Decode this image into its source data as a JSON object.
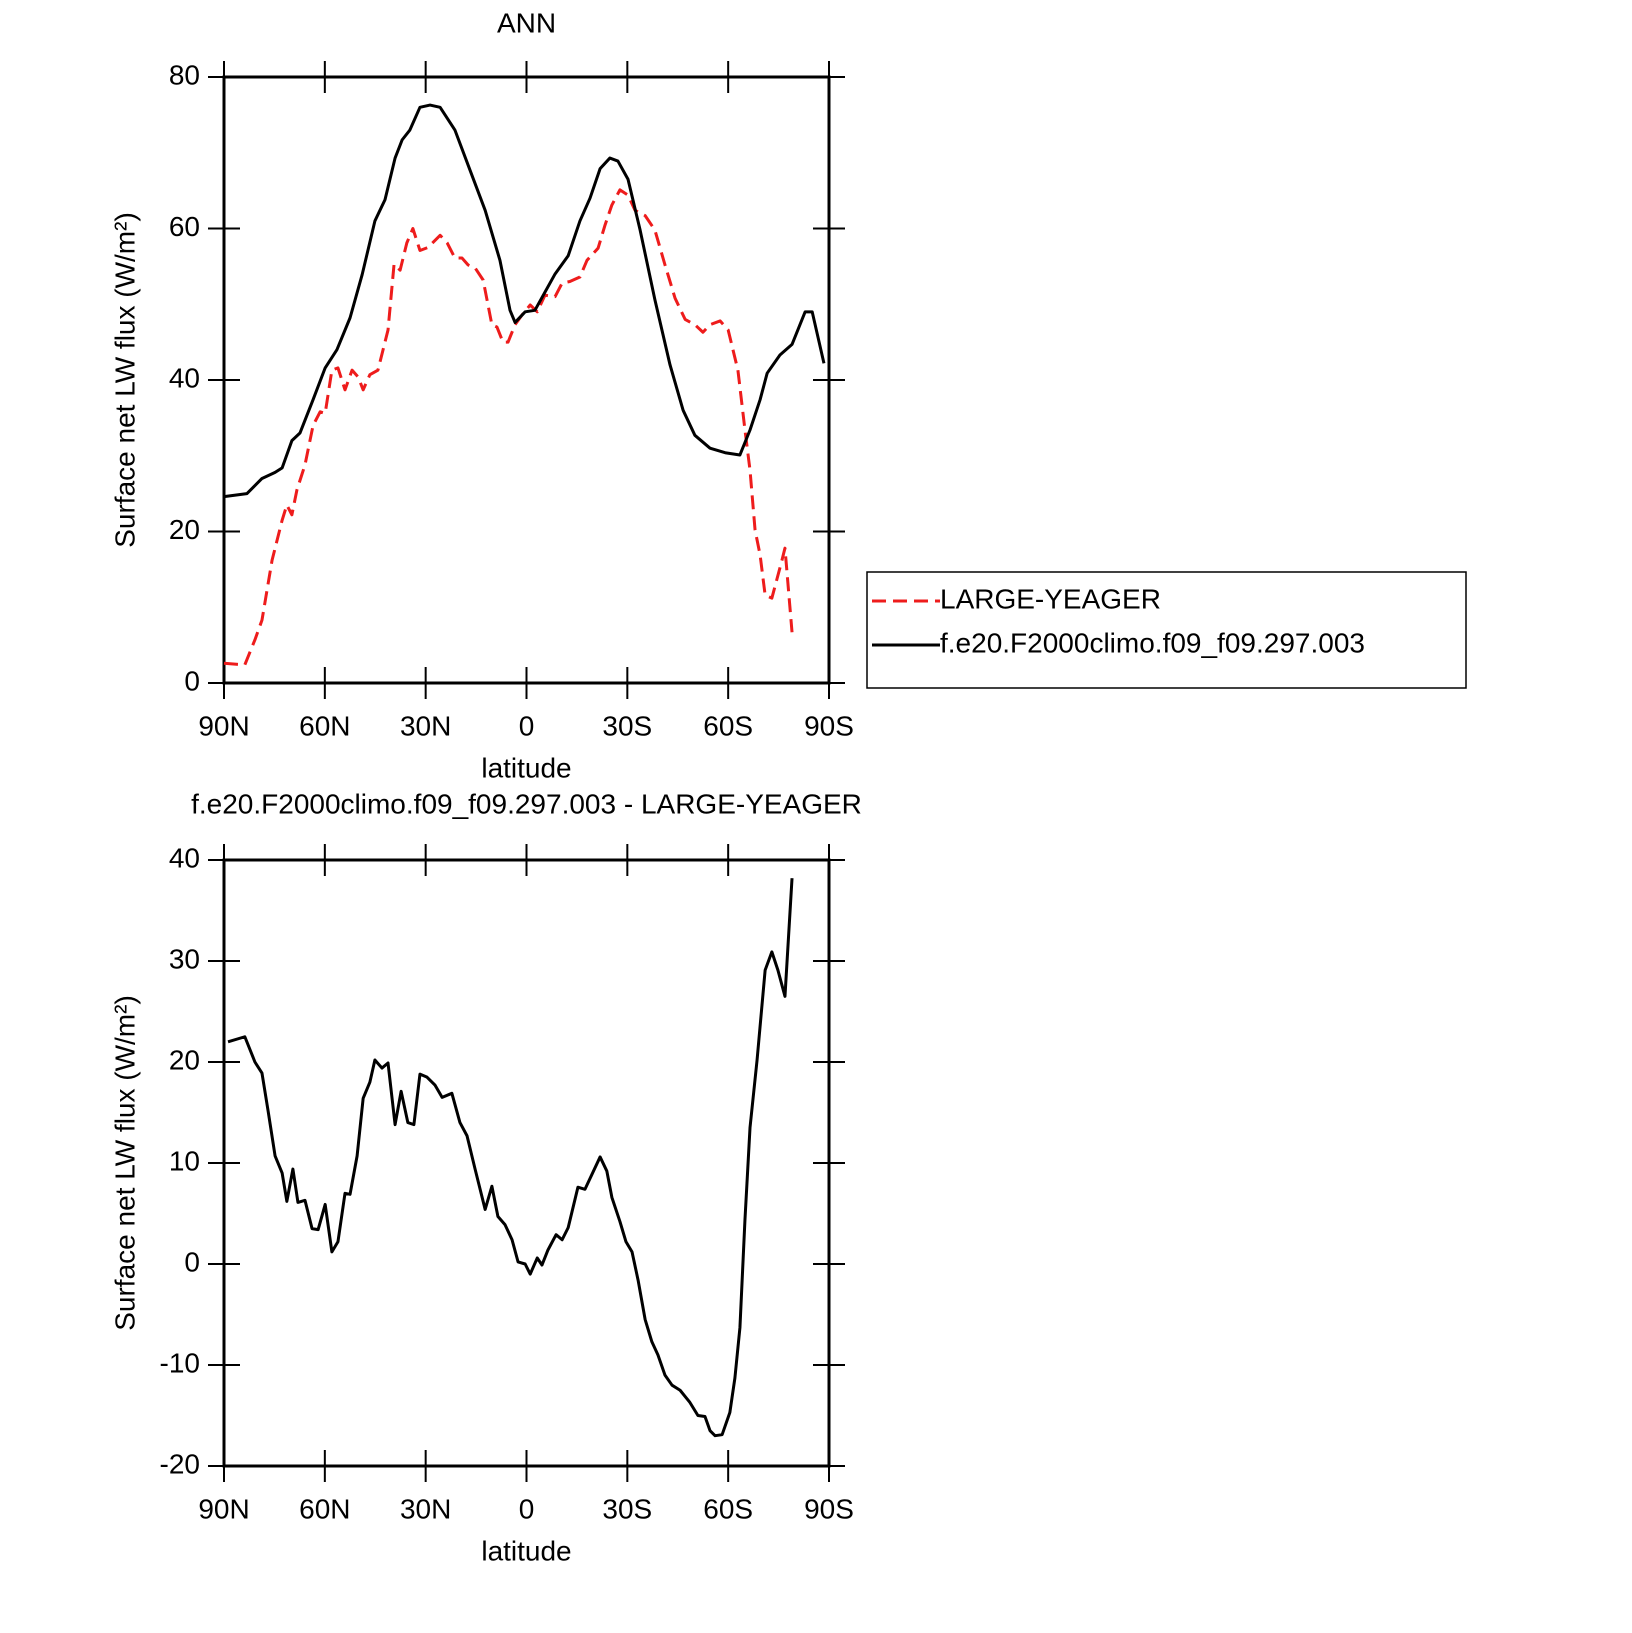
{
  "chart_data": [
    {
      "type": "line",
      "title": "ANN",
      "ylabel": "Surface net LW flux (W/m²)",
      "xlabel": "latitude",
      "xlim": [
        90,
        -90
      ],
      "ylim": [
        0,
        80
      ],
      "xticks": [
        {
          "value": 90,
          "label": "90N"
        },
        {
          "value": 60,
          "label": "60N"
        },
        {
          "value": 30,
          "label": "30N"
        },
        0,
        {
          "value": -30,
          "label": "30S"
        },
        {
          "value": -60,
          "label": "60S"
        },
        {
          "value": -90,
          "label": "90S"
        }
      ],
      "yticks": [
        0,
        20,
        40,
        60,
        80
      ],
      "legend": "right",
      "series": [
        {
          "name": "LARGE-YEAGER",
          "color": "#ee1c1c",
          "style": "dashed",
          "x": [
            90,
            83.8,
            80.8,
            78.7,
            75.7,
            72.7,
            71.3,
            69.8,
            68.3,
            65.9,
            63.5,
            61.4,
            59.9,
            57.9,
            56.1,
            54,
            51.9,
            50.1,
            48.6,
            46.6,
            44.2,
            41.2,
            39.4,
            37.6,
            35.6,
            33.8,
            31.7,
            29.3,
            25.7,
            23.6,
            21.3,
            19.2,
            17.4,
            15.3,
            12.9,
            10.3,
            8.8,
            7,
            5.5,
            3.4,
            1.3,
            -1.1,
            -3.2,
            -5.5,
            -8.5,
            -10.6,
            -12.9,
            -15.9,
            -18,
            -21.3,
            -23.4,
            -25.4,
            -27.8,
            -30.2,
            -32.3,
            -35.3,
            -38.2,
            -41.2,
            -44.2,
            -47.2,
            -50.1,
            -52.5,
            -54.6,
            -57.6,
            -60,
            -62.9,
            -65,
            -66.5,
            -68,
            -69.5,
            -71,
            -73,
            -76,
            -76.9,
            -79
          ],
          "values": [
            2.6,
            2.4,
            5.7,
            8.3,
            16.2,
            21.5,
            23.5,
            22.2,
            25.5,
            28.8,
            34,
            35.8,
            35.6,
            41.3,
            41.6,
            38.7,
            41.3,
            40.4,
            38.7,
            40.7,
            41.3,
            46.6,
            55.3,
            54.5,
            58.1,
            60,
            57.1,
            57.5,
            59.1,
            58.1,
            56.1,
            56.1,
            55.2,
            54.8,
            53.2,
            47.3,
            47,
            45,
            45,
            47.3,
            48.6,
            49.9,
            49,
            51.2,
            51,
            52.8,
            53,
            53.6,
            55.8,
            57.4,
            60.5,
            63.1,
            65.1,
            64.4,
            62.4,
            61.7,
            59.8,
            55.2,
            50.8,
            48,
            47.3,
            46.3,
            47.3,
            47.8,
            46.6,
            41.3,
            33.4,
            28.1,
            20.2,
            16.9,
            11.6,
            11.2,
            16.2,
            17.8,
            6.7
          ]
        },
        {
          "name": "f.e20.F2000climo.f09_f09.297.003",
          "color": "#000000",
          "style": "solid",
          "x": [
            90,
            83.2,
            78.7,
            74.8,
            72.7,
            69.8,
            67.4,
            63.5,
            59.9,
            56.4,
            52.5,
            48.9,
            45.1,
            42.1,
            39.1,
            37,
            34.7,
            31.7,
            28.7,
            25.7,
            21.3,
            16.8,
            12.3,
            7.9,
            4.9,
            3.4,
            0.4,
            -2.5,
            -5.5,
            -8.5,
            -12.4,
            -15.9,
            -18.9,
            -21.9,
            -24.8,
            -27.2,
            -30.2,
            -33.8,
            -38.2,
            -42.7,
            -46.6,
            -50.1,
            -54.6,
            -59.1,
            -63.5,
            -66.5,
            -69.5,
            -71.6,
            -75.4,
            -79,
            -82.9,
            -85,
            -88.5
          ],
          "values": [
            24.6,
            25,
            27,
            27.8,
            28.4,
            32,
            33,
            37.4,
            41.6,
            44,
            48.2,
            53.9,
            61,
            63.8,
            69.3,
            71.7,
            73,
            76,
            76.3,
            76,
            73,
            67.7,
            62.4,
            55.8,
            49.2,
            47.6,
            49,
            49.2,
            51.6,
            54,
            56.4,
            61,
            64,
            67.9,
            69.3,
            68.9,
            66.5,
            59.8,
            50.6,
            42,
            36,
            32.7,
            31,
            30.4,
            30.1,
            33.4,
            37.4,
            40.9,
            43.3,
            44.7,
            49,
            49,
            42.2
          ]
        }
      ]
    },
    {
      "type": "line",
      "title": "f.e20.F2000climo.f09_f09.297.003 - LARGE-YEAGER",
      "ylabel": "Surface net LW flux (W/m²)",
      "xlabel": "latitude",
      "xlim": [
        90,
        -90
      ],
      "ylim": [
        -20,
        40
      ],
      "xticks": [
        {
          "value": 90,
          "label": "90N"
        },
        {
          "value": 60,
          "label": "60N"
        },
        {
          "value": 30,
          "label": "30N"
        },
        0,
        {
          "value": -30,
          "label": "30S"
        },
        {
          "value": -60,
          "label": "60S"
        },
        {
          "value": -90,
          "label": "90S"
        }
      ],
      "yticks": [
        -20,
        -10,
        0,
        10,
        20,
        30,
        40
      ],
      "color": "#000000",
      "x": [
        88.8,
        83.8,
        80.8,
        78.7,
        76.9,
        74.8,
        72.7,
        71.3,
        69.5,
        68,
        65.9,
        63.8,
        62,
        59.9,
        57.9,
        56.1,
        54,
        52.5,
        50.4,
        48.6,
        46.6,
        45.1,
        43,
        41.2,
        39.1,
        37.3,
        35.3,
        33.5,
        31.7,
        29.6,
        27.2,
        25.1,
        22.2,
        19.8,
        17.7,
        15.3,
        12.3,
        10.3,
        8.5,
        6.4,
        4.3,
        2.5,
        0.4,
        -1.1,
        -3.2,
        -4.6,
        -6.4,
        -8.8,
        -10.6,
        -12.4,
        -15.3,
        -17.4,
        -21.9,
        -23.9,
        -25.4,
        -27.8,
        -29.6,
        -31.4,
        -33.2,
        -35.3,
        -37.3,
        -39.1,
        -41.2,
        -43.3,
        -45.7,
        -48.6,
        -51,
        -53.1,
        -54.6,
        -56.1,
        -58.2,
        -60.5,
        -62,
        -63.5,
        -65,
        -66.5,
        -68.6,
        -71,
        -73,
        -74.8,
        -76.9,
        -79
      ],
      "values": [
        22,
        22.5,
        20,
        18.9,
        15.2,
        10.7,
        9,
        6.2,
        9.4,
        6.1,
        6.3,
        3.5,
        3.4,
        5.9,
        1.2,
        2.2,
        7,
        6.9,
        10.7,
        16.4,
        18,
        20.2,
        19.4,
        19.9,
        13.8,
        17.1,
        14,
        13.8,
        18.8,
        18.5,
        17.7,
        16.5,
        16.9,
        14,
        12.7,
        9.4,
        5.4,
        7.7,
        4.7,
        3.9,
        2.4,
        0.2,
        0,
        -1,
        0.6,
        -0.1,
        1.4,
        2.9,
        2.4,
        3.6,
        7.6,
        7.4,
        10.6,
        9.2,
        6.6,
        4.2,
        2.2,
        1.2,
        -1.6,
        -5.5,
        -7.7,
        -9,
        -11,
        -12,
        -12.5,
        -13.7,
        -15,
        -15.1,
        -16.5,
        -17,
        -16.9,
        -14.7,
        -11.3,
        -6.3,
        4.4,
        13.5,
        20.2,
        29.1,
        30.9,
        29.1,
        26.5,
        38.2
      ]
    }
  ]
}
